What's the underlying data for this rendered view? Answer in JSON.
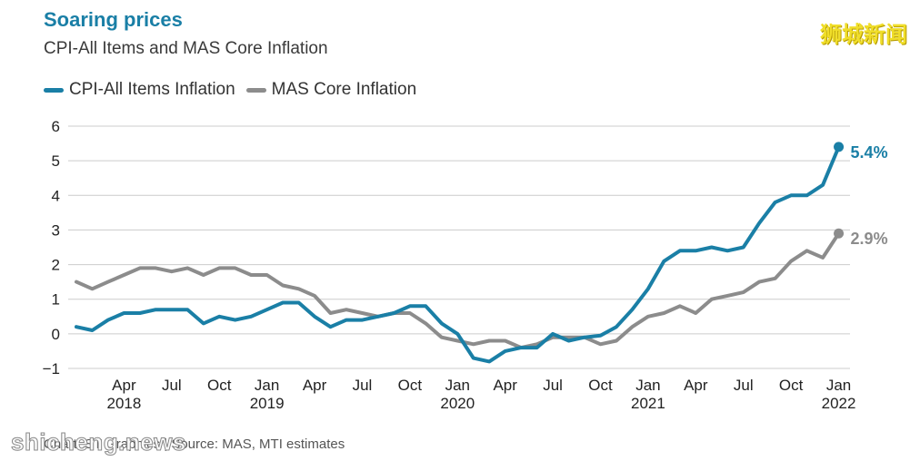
{
  "title": "Soaring prices",
  "subtitle": "CPI-All Items and MAS Core Inflation",
  "source": "Chart: ST Graphics | Source: MAS, MTI estimates",
  "watermark_top": "狮城新闻",
  "watermark_bottom": "shicheng.news",
  "colors": {
    "cpi": "#1a7fa6",
    "core": "#8c8c8c",
    "grid": "#cccccc"
  },
  "chart_data": {
    "type": "line",
    "title": "CPI-All Items and MAS Core Inflation",
    "xlabel": "",
    "ylabel": "",
    "ylim": [
      -1,
      6
    ],
    "yticks": [
      "6",
      "5",
      "4",
      "3",
      "2",
      "1",
      "0",
      "−1"
    ],
    "ytick_values": [
      6,
      5,
      4,
      3,
      2,
      1,
      0,
      -1
    ],
    "x_start": "Jan 2018",
    "x_end": "Apr 2022",
    "xticks": [
      {
        "month_index": 3,
        "label": "Apr",
        "year": "2018"
      },
      {
        "month_index": 6,
        "label": "Jul",
        "year": ""
      },
      {
        "month_index": 9,
        "label": "Oct",
        "year": ""
      },
      {
        "month_index": 12,
        "label": "Jan",
        "year": "2019"
      },
      {
        "month_index": 15,
        "label": "Apr",
        "year": ""
      },
      {
        "month_index": 18,
        "label": "Jul",
        "year": ""
      },
      {
        "month_index": 21,
        "label": "Oct",
        "year": ""
      },
      {
        "month_index": 24,
        "label": "Jan",
        "year": "2020"
      },
      {
        "month_index": 27,
        "label": "Apr",
        "year": ""
      },
      {
        "month_index": 30,
        "label": "Jul",
        "year": ""
      },
      {
        "month_index": 33,
        "label": "Oct",
        "year": ""
      },
      {
        "month_index": 36,
        "label": "Jan",
        "year": "2021"
      },
      {
        "month_index": 39,
        "label": "Apr",
        "year": ""
      },
      {
        "month_index": 42,
        "label": "Jul",
        "year": ""
      },
      {
        "month_index": 45,
        "label": "Oct",
        "year": ""
      },
      {
        "month_index": 48,
        "label": "Jan",
        "year": "2022"
      }
    ],
    "grid": true,
    "legend_position": "top-left",
    "series": [
      {
        "name": "CPI-All Items Inflation",
        "end_label": "5.4%",
        "values": [
          0.2,
          0.1,
          0.4,
          0.6,
          0.6,
          0.7,
          0.7,
          0.7,
          0.3,
          0.5,
          0.4,
          0.5,
          0.7,
          0.9,
          0.9,
          0.5,
          0.2,
          0.4,
          0.4,
          0.5,
          0.6,
          0.8,
          0.8,
          0.3,
          0.0,
          -0.7,
          -0.8,
          -0.5,
          -0.4,
          -0.4,
          0.0,
          -0.2,
          -0.1,
          -0.05,
          0.2,
          0.7,
          1.3,
          2.1,
          2.4,
          2.4,
          2.5,
          2.4,
          2.5,
          3.2,
          3.8,
          4.0,
          4.0,
          4.3,
          5.4
        ]
      },
      {
        "name": "MAS Core Inflation",
        "end_label": "2.9%",
        "values": [
          1.5,
          1.3,
          1.5,
          1.7,
          1.9,
          1.9,
          1.8,
          1.9,
          1.7,
          1.9,
          1.9,
          1.7,
          1.7,
          1.4,
          1.3,
          1.1,
          0.6,
          0.7,
          0.6,
          0.5,
          0.6,
          0.6,
          0.3,
          -0.1,
          -0.2,
          -0.3,
          -0.2,
          -0.2,
          -0.4,
          -0.3,
          -0.1,
          -0.1,
          -0.1,
          -0.3,
          -0.2,
          0.2,
          0.5,
          0.6,
          0.8,
          0.6,
          1.0,
          1.1,
          1.2,
          1.5,
          1.6,
          2.1,
          2.4,
          2.2,
          2.9
        ]
      }
    ]
  }
}
